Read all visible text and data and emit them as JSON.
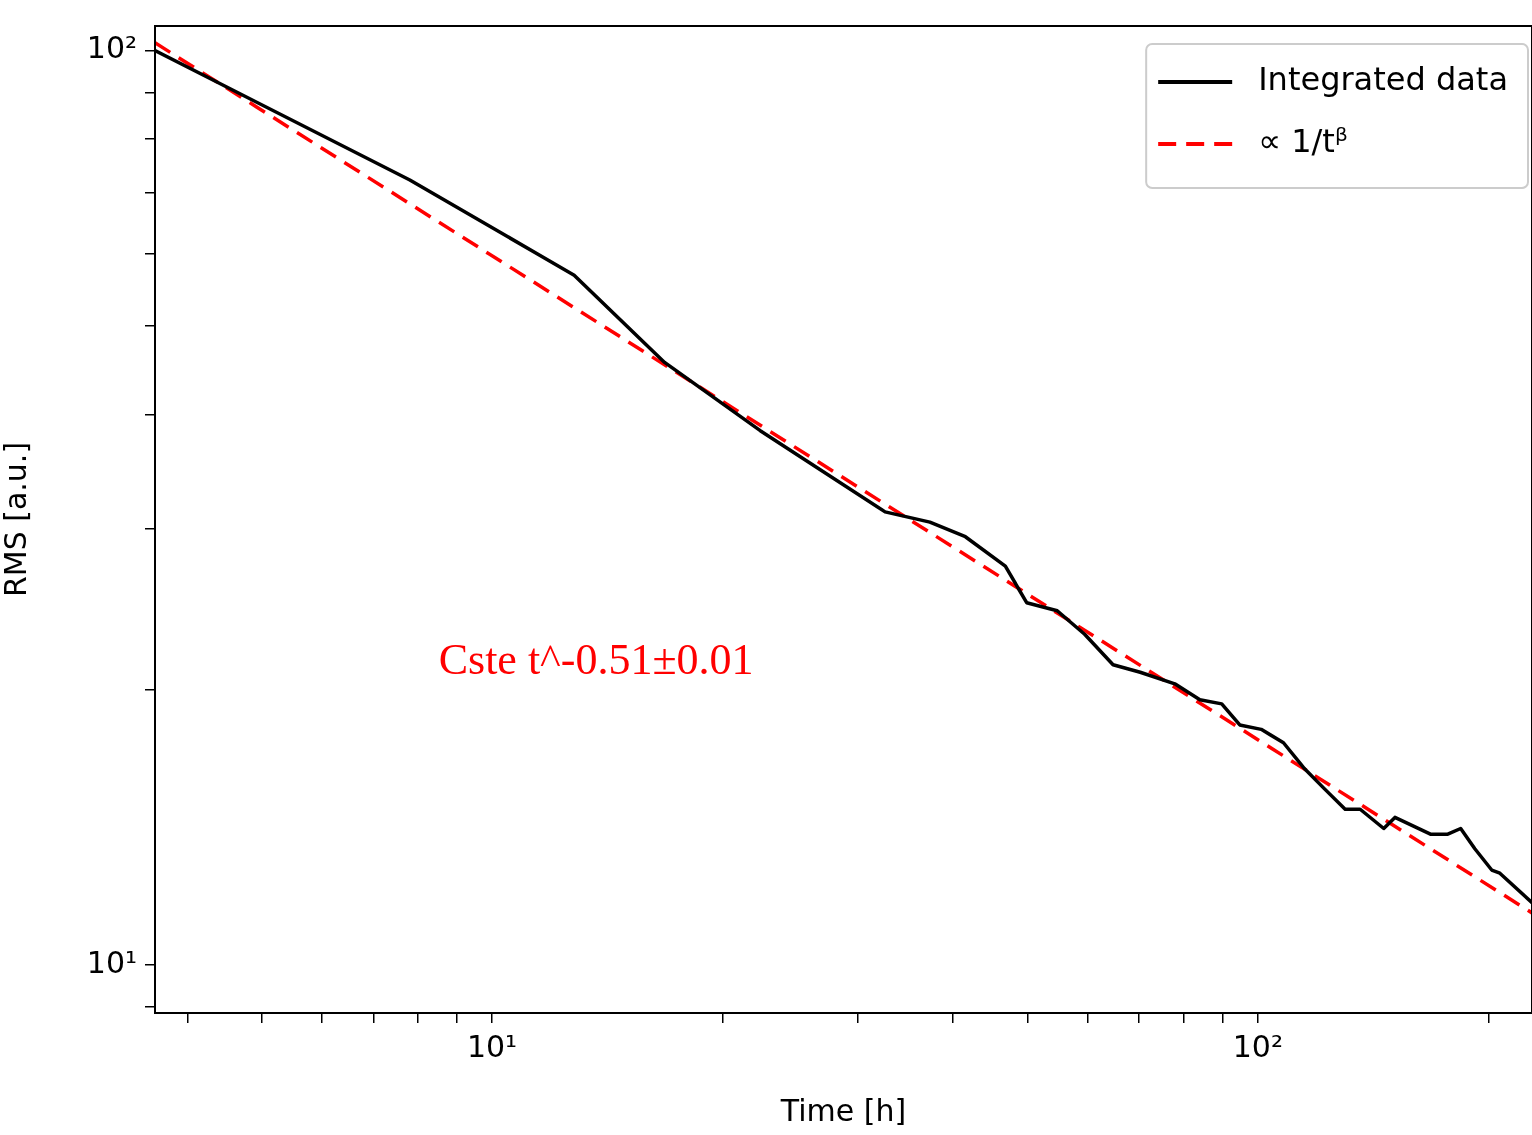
{
  "chart_data": {
    "type": "line",
    "xlabel": "Time [h]",
    "ylabel": "RMS [a.u.]",
    "log": "xy",
    "grid": false,
    "legend": "top right",
    "marker": "none",
    "xlim": [
      3.63,
      228
    ],
    "ylim": [
      8.86,
      106.4
    ],
    "xticks": [
      {
        "value": 4,
        "label": null
      },
      {
        "value": 5,
        "label": null
      },
      {
        "value": 6,
        "label": null
      },
      {
        "value": 7,
        "label": null
      },
      {
        "value": 8,
        "label": null
      },
      {
        "value": 9,
        "label": null
      },
      {
        "value": 10,
        "label": "10¹"
      },
      {
        "value": 20,
        "label": null
      },
      {
        "value": 30,
        "label": null
      },
      {
        "value": 40,
        "label": null
      },
      {
        "value": 50,
        "label": null
      },
      {
        "value": 60,
        "label": null
      },
      {
        "value": 70,
        "label": null
      },
      {
        "value": 80,
        "label": null
      },
      {
        "value": 90,
        "label": null
      },
      {
        "value": 100,
        "label": "10²"
      },
      {
        "value": 200,
        "label": null
      }
    ],
    "yticks": [
      {
        "value": 9,
        "label": null
      },
      {
        "value": 10,
        "label": "10¹"
      },
      {
        "value": 20,
        "label": null
      },
      {
        "value": 30,
        "label": null
      },
      {
        "value": 40,
        "label": null
      },
      {
        "value": 50,
        "label": null
      },
      {
        "value": 60,
        "label": null
      },
      {
        "value": 70,
        "label": null
      },
      {
        "value": 80,
        "label": null
      },
      {
        "value": 90,
        "label": null
      },
      {
        "value": 100,
        "label": "10²"
      }
    ],
    "series": [
      {
        "name": "Integrated data",
        "color": "#000000",
        "line_style": "solid",
        "x": [
          3.63,
          7.81,
          12.8,
          16.8,
          22.4,
          32.6,
          37.3,
          41.5,
          46.8,
          49.9,
          54.7,
          59.4,
          64.7,
          70.2,
          77.9,
          84,
          89.7,
          94.7,
          101,
          108,
          115,
          122,
          130,
          136,
          146,
          151,
          168,
          177,
          184,
          192,
          202,
          207,
          228
        ],
        "values": [
          100,
          72.2,
          56.8,
          45.6,
          38.4,
          31.3,
          30.5,
          29.4,
          27.3,
          24.9,
          24.4,
          23,
          21.3,
          20.9,
          20.3,
          19.5,
          19.3,
          18.3,
          18.1,
          17.5,
          16.4,
          15.6,
          14.8,
          14.8,
          14.1,
          14.5,
          13.9,
          13.9,
          14.1,
          13.4,
          12.7,
          12.6,
          11.7
        ]
      },
      {
        "name": "∝ 1/tᵝ",
        "color": "#ff0000",
        "line_style": "dashed",
        "x": [
          3.63,
          228
        ],
        "values": [
          102,
          11.4
        ]
      }
    ],
    "annotations": [
      "Cste t^-0.51±0.01"
    ]
  }
}
